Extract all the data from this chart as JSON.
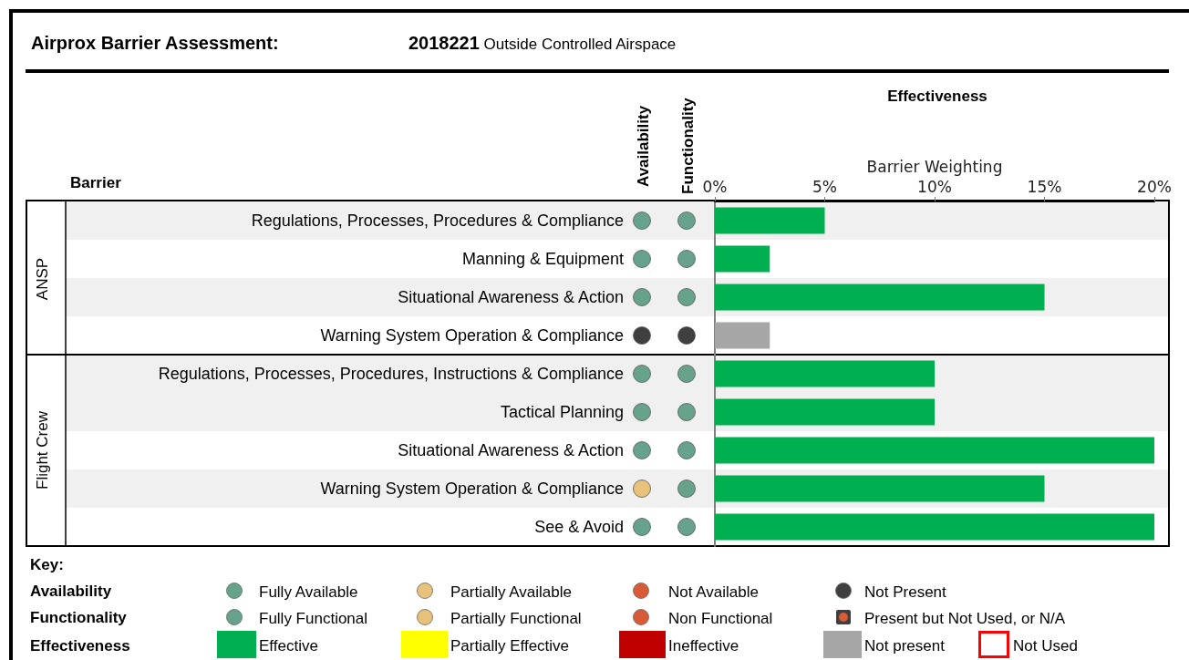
{
  "chart_data": {
    "type": "bar",
    "orientation": "horizontal",
    "title": "Airprox Barrier Assessment:",
    "subtitle": "2018221 Outside Controlled Airspace",
    "xlabel": "Barrier Weighting",
    "categories": [
      "Regulations, Processes, Procedures & Compliance",
      "Manning & Equipment",
      "Situational Awareness & Action",
      "Warning System Operation & Compliance",
      "Regulations, Processes, Procedures, Instructions & Compliance",
      "Tactical Planning",
      "Situational Awareness & Action",
      "Warning System Operation & Compliance",
      "See & Avoid"
    ],
    "values": [
      5,
      2.5,
      15,
      2.5,
      10,
      10,
      20,
      15,
      20
    ],
    "colors": [
      "#00b050",
      "#00b050",
      "#00b050",
      "#a6a6a6",
      "#00b050",
      "#00b050",
      "#00b050",
      "#00b050",
      "#00b050"
    ],
    "xlim": [
      0,
      20
    ],
    "xticks": [
      {
        "value": 0,
        "label": "0%"
      },
      {
        "value": 5,
        "label": "5%"
      },
      {
        "value": 10,
        "label": "10%"
      },
      {
        "value": 15,
        "label": "15%"
      },
      {
        "value": 20,
        "label": "20%"
      }
    ],
    "annotations": [
      "Effectiveness",
      "Barrier",
      "Availability",
      "Functionality",
      "ANSP",
      "Flight Crew",
      "Key:",
      "Availability",
      "Functionality",
      "Effectiveness",
      "Fully Available",
      "Partially Available",
      "Not Available",
      "Not Present",
      "Fully Functional",
      "Partially Functional",
      "Non Functional",
      "Present but Not Used, or N/A",
      "Effective",
      "Partially Effective",
      "Ineffective",
      "Not present",
      "Not Used"
    ]
  }
}
